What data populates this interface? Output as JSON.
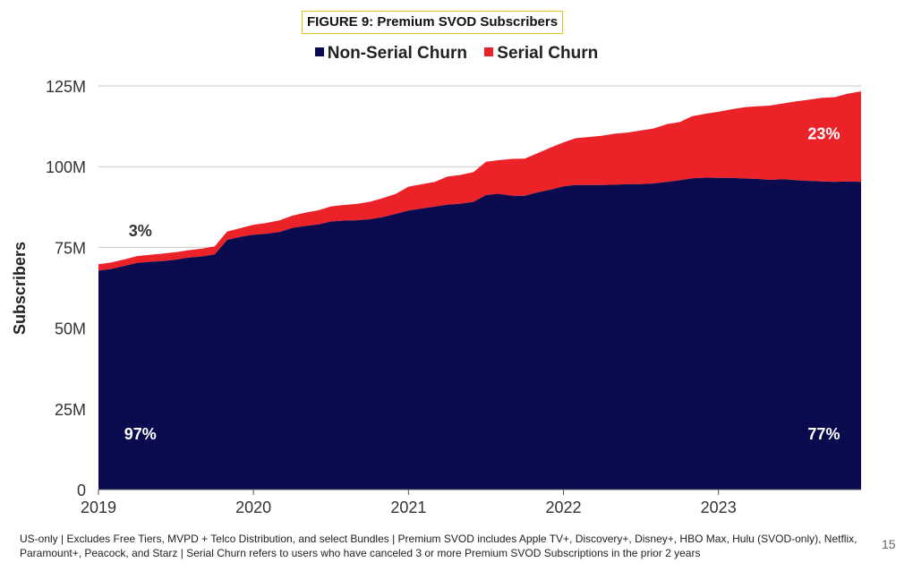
{
  "figure_title": "FIGURE 9: Premium SVOD Subscribers",
  "footnote": "US-only | Excludes Free Tiers, MVPD + Telco Distribution, and select Bundles | Premium SVOD includes Apple TV+, Discovery+, Disney+, HBO Max, Hulu (SVOD-only), Netflix, Paramount+, Peacock, and Starz | Serial Churn refers to users who have canceled 3 or more Premium SVOD Subscriptions in the prior 2 years",
  "page_number": "15",
  "colors": {
    "non_serial": "#0a0a4e",
    "serial": "#ec2229",
    "axis": "#555555",
    "grid": "#c8c8c8"
  },
  "chart_data": {
    "type": "area",
    "stacked": true,
    "ylabel": "Subscribers",
    "xlabel": "",
    "ylim": [
      0,
      125
    ],
    "yticks": [
      0,
      25,
      50,
      75,
      100,
      125
    ],
    "ytick_labels": [
      "0",
      "25M",
      "50M",
      "75M",
      "100M",
      "125M"
    ],
    "xlim": [
      2019.0,
      2023.92
    ],
    "xticks": [
      2019,
      2020,
      2021,
      2022,
      2023
    ],
    "xtick_labels": [
      "2019",
      "2020",
      "2021",
      "2022",
      "2023"
    ],
    "grid": "horizontal",
    "legend": "top",
    "x": [
      2019.0,
      2019.08,
      2019.17,
      2019.25,
      2019.33,
      2019.42,
      2019.5,
      2019.58,
      2019.67,
      2019.75,
      2019.83,
      2019.92,
      2020.0,
      2020.08,
      2020.17,
      2020.25,
      2020.33,
      2020.42,
      2020.5,
      2020.58,
      2020.67,
      2020.75,
      2020.83,
      2020.92,
      2021.0,
      2021.08,
      2021.17,
      2021.25,
      2021.33,
      2021.42,
      2021.5,
      2021.58,
      2021.67,
      2021.75,
      2021.83,
      2021.92,
      2022.0,
      2022.08,
      2022.17,
      2022.25,
      2022.33,
      2022.42,
      2022.5,
      2022.58,
      2022.67,
      2022.75,
      2022.83,
      2022.92,
      2023.0,
      2023.08,
      2023.17,
      2023.25,
      2023.33,
      2023.42,
      2023.5,
      2023.58,
      2023.67,
      2023.75,
      2023.83,
      2023.92
    ],
    "series": [
      {
        "name": "Non-Serial Churn",
        "color": "#0a0a4e",
        "values": [
          67.8,
          68.3,
          69.3,
          70.2,
          70.5,
          70.8,
          71.2,
          71.8,
          72.2,
          72.8,
          77.3,
          78.3,
          78.9,
          79.2,
          79.8,
          81.0,
          81.6,
          82.1,
          83.0,
          83.3,
          83.4,
          83.7,
          84.3,
          85.4,
          86.4,
          87.0,
          87.6,
          88.2,
          88.5,
          89.1,
          91.2,
          91.6,
          91.0,
          91.0,
          92.0,
          92.9,
          93.9,
          94.3,
          94.3,
          94.3,
          94.4,
          94.6,
          94.6,
          94.8,
          95.3,
          95.8,
          96.4,
          96.6,
          96.5,
          96.5,
          96.3,
          96.2,
          95.9,
          96.1,
          95.8,
          95.6,
          95.4,
          95.3,
          95.4,
          95.3
        ]
      },
      {
        "name": "Serial Churn",
        "color": "#ec2229",
        "values": [
          2.0,
          2.0,
          2.0,
          2.1,
          2.2,
          2.3,
          2.3,
          2.3,
          2.4,
          2.5,
          2.6,
          2.7,
          3.1,
          3.3,
          3.6,
          3.8,
          4.1,
          4.4,
          4.7,
          4.8,
          5.1,
          5.4,
          5.9,
          6.2,
          7.4,
          7.5,
          7.7,
          8.7,
          8.9,
          9.2,
          10.3,
          10.4,
          11.4,
          11.5,
          12.1,
          13.1,
          13.6,
          14.5,
          14.9,
          15.3,
          15.8,
          16.0,
          16.6,
          17.0,
          17.9,
          18.0,
          19.2,
          19.8,
          20.5,
          21.2,
          22.1,
          22.5,
          23.0,
          23.5,
          24.4,
          25.1,
          25.9,
          26.2,
          27.2,
          28.0
        ]
      }
    ],
    "annotations": [
      {
        "text": "3%",
        "x": 2019.27,
        "y": 78.5,
        "color": "#333333"
      },
      {
        "text": "97%",
        "x": 2019.27,
        "y": 15.5,
        "color": "#ffffff"
      },
      {
        "text": "23%",
        "x": 2023.68,
        "y": 108.5,
        "color": "#ffffff"
      },
      {
        "text": "77%",
        "x": 2023.68,
        "y": 15.5,
        "color": "#ffffff"
      }
    ]
  }
}
